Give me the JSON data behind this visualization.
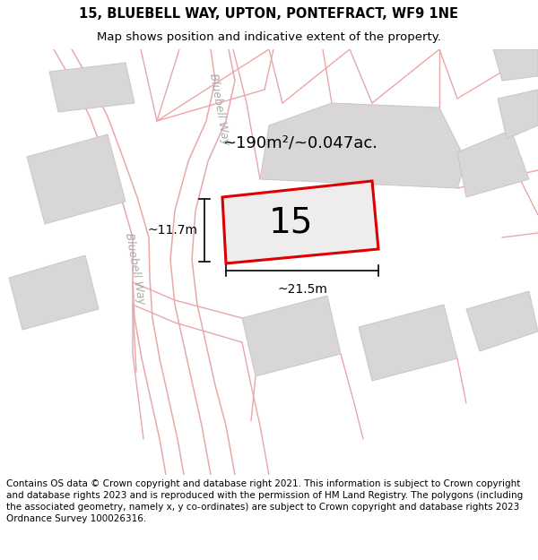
{
  "title_line1": "15, BLUEBELL WAY, UPTON, PONTEFRACT, WF9 1NE",
  "title_line2": "Map shows position and indicative extent of the property.",
  "footer_text": "Contains OS data © Crown copyright and database right 2021. This information is subject to Crown copyright and database rights 2023 and is reproduced with the permission of HM Land Registry. The polygons (including the associated geometry, namely x, y co-ordinates) are subject to Crown copyright and database rights 2023 Ordnance Survey 100026316.",
  "bg_color": "#ffffff",
  "map_bg": "#eeecec",
  "road_color": "#e8a8a8",
  "building_color": "#d8d6d6",
  "building_edge": "#c8c6c6",
  "plot_border": "#dd0000",
  "plot_fill": "#eeecec",
  "area_label": "~190m²/~0.047ac.",
  "number_label": "15",
  "dim_width": "~21.5m",
  "dim_height": "~11.7m",
  "road_label_1": "Bluebell Way",
  "road_label_2": "Bluebell Way",
  "title_fontsize": 10.5,
  "subtitle_fontsize": 9.5,
  "footer_fontsize": 7.5,
  "area_fontsize": 13,
  "number_fontsize": 28,
  "dim_fontsize": 10
}
